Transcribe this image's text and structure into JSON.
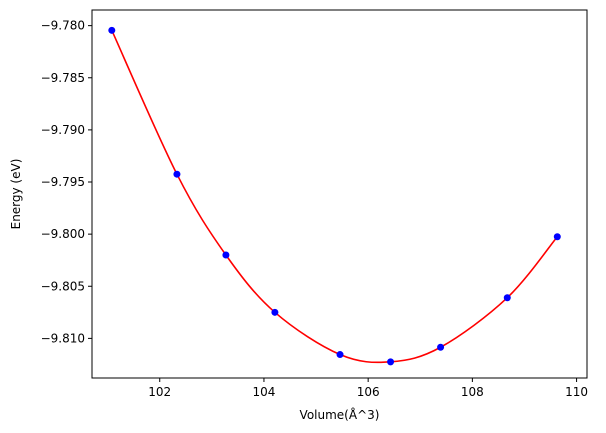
{
  "chart_data": {
    "type": "scatter",
    "xlabel": "Volume(Å^3)",
    "ylabel": "Energy (eV)",
    "xlim": [
      100.7,
      110.2
    ],
    "ylim": [
      -9.8138,
      -9.7785
    ],
    "xticks": [
      102,
      104,
      106,
      108,
      110
    ],
    "xtick_labels": [
      "102",
      "104",
      "106",
      "108",
      "110"
    ],
    "yticks": [
      -9.78,
      -9.785,
      -9.79,
      -9.795,
      -9.8,
      -9.805,
      -9.81
    ],
    "ytick_labels": [
      "−9.780",
      "−9.785",
      "−9.790",
      "−9.795",
      "−9.800",
      "−9.805",
      "−9.810"
    ],
    "grid": false,
    "series": [
      {
        "kind": "points",
        "color": "#0000ff",
        "x": [
          101.08,
          102.33,
          103.27,
          104.21,
          105.46,
          106.43,
          107.39,
          108.67,
          109.63
        ],
        "y": [
          -9.78045,
          -9.79425,
          -9.802,
          -9.8075,
          -9.81155,
          -9.81225,
          -9.81085,
          -9.8061,
          -9.80025
        ]
      },
      {
        "kind": "fit-curve",
        "color": "#ff0000",
        "x": [
          101.08,
          102.33,
          103.27,
          104.21,
          105.46,
          106.43,
          107.39,
          108.67,
          109.63
        ],
        "y": [
          -9.78045,
          -9.79425,
          -9.802,
          -9.8075,
          -9.81155,
          -9.81225,
          -9.81085,
          -9.8061,
          -9.80025
        ]
      }
    ]
  }
}
